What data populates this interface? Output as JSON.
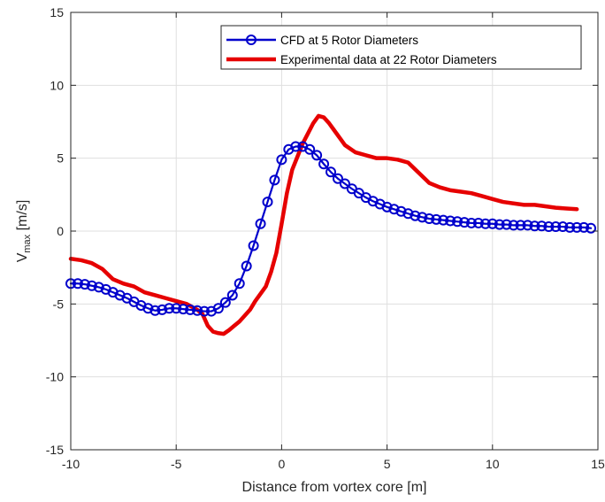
{
  "chart_data": {
    "type": "line",
    "title": "",
    "xlabel": "Distance from vortex core [m]",
    "ylabel": {
      "main": "V",
      "sub": "max",
      "unit": " [m/s]"
    },
    "xlim": [
      -10,
      15
    ],
    "ylim": [
      -15,
      15
    ],
    "xticks": [
      -10,
      -5,
      0,
      5,
      10,
      15
    ],
    "yticks": [
      -15,
      -10,
      -5,
      0,
      5,
      10,
      15
    ],
    "grid": true,
    "legend_position": "top-right",
    "series": [
      {
        "name": "CFD at 5 Rotor Diameters",
        "color": "#0000cc",
        "marker": "circle",
        "x": [
          -10,
          -9.6667,
          -9.3333,
          -9,
          -8.6667,
          -8.3333,
          -8,
          -7.6667,
          -7.3333,
          -7,
          -6.6667,
          -6.3333,
          -6,
          -5.6667,
          -5.3333,
          -5,
          -4.6667,
          -4.3333,
          -4,
          -3.6667,
          -3.3333,
          -3,
          -2.6667,
          -2.3333,
          -2,
          -1.6667,
          -1.3333,
          -1,
          -0.6667,
          -0.3333,
          0,
          0.3333,
          0.6667,
          1,
          1.3333,
          1.6667,
          2,
          2.3333,
          2.6667,
          3,
          3.3333,
          3.6667,
          4,
          4.3333,
          4.6667,
          5,
          5.3333,
          5.6667,
          6,
          6.3333,
          6.6667,
          7,
          7.3333,
          7.6667,
          8,
          8.3333,
          8.6667,
          9,
          9.3333,
          9.6667,
          10,
          10.3333,
          10.6667,
          11,
          11.3333,
          11.6667,
          12,
          12.3333,
          12.6667,
          13,
          13.3333,
          13.6667,
          14,
          14.3333,
          14.6667
        ],
        "y": [
          -3.6,
          -3.6,
          -3.65,
          -3.75,
          -3.85,
          -4.0,
          -4.2,
          -4.4,
          -4.6,
          -4.85,
          -5.1,
          -5.3,
          -5.45,
          -5.4,
          -5.3,
          -5.3,
          -5.35,
          -5.4,
          -5.45,
          -5.5,
          -5.5,
          -5.3,
          -4.9,
          -4.4,
          -3.6,
          -2.4,
          -1.0,
          0.5,
          2.0,
          3.5,
          4.9,
          5.6,
          5.8,
          5.8,
          5.6,
          5.2,
          4.6,
          4.05,
          3.6,
          3.25,
          2.9,
          2.6,
          2.3,
          2.05,
          1.85,
          1.65,
          1.5,
          1.35,
          1.2,
          1.05,
          0.95,
          0.85,
          0.8,
          0.75,
          0.7,
          0.65,
          0.6,
          0.55,
          0.55,
          0.5,
          0.5,
          0.45,
          0.45,
          0.4,
          0.4,
          0.4,
          0.35,
          0.35,
          0.3,
          0.3,
          0.3,
          0.25,
          0.25,
          0.25,
          0.2
        ]
      },
      {
        "name": "Experimental data at 22 Rotor Diameters",
        "color": "#e60000",
        "marker": "none",
        "x": [
          -10,
          -9.5,
          -9,
          -8.5,
          -8,
          -7.5,
          -7,
          -6.5,
          -6,
          -5.5,
          -5,
          -4.5,
          -4,
          -3.75,
          -3.5,
          -3.25,
          -3,
          -2.75,
          -2.5,
          -2.25,
          -2,
          -1.75,
          -1.5,
          -1.25,
          -1,
          -0.75,
          -0.5,
          -0.25,
          0,
          0.25,
          0.5,
          0.75,
          1,
          1.25,
          1.5,
          1.75,
          2,
          2.25,
          2.5,
          2.75,
          3,
          3.5,
          4,
          4.5,
          5,
          5.5,
          6,
          6.5,
          7,
          7.5,
          8,
          8.5,
          9,
          9.5,
          10,
          10.5,
          11,
          11.5,
          12,
          12.5,
          13,
          13.5,
          14
        ],
        "y": [
          -1.9,
          -2.0,
          -2.2,
          -2.6,
          -3.3,
          -3.6,
          -3.8,
          -4.2,
          -4.4,
          -4.6,
          -4.8,
          -5.0,
          -5.4,
          -5.7,
          -6.5,
          -6.9,
          -7.0,
          -7.05,
          -6.8,
          -6.5,
          -6.2,
          -5.8,
          -5.4,
          -4.8,
          -4.3,
          -3.8,
          -2.8,
          -1.5,
          0.5,
          2.6,
          4.2,
          5.1,
          6.0,
          6.7,
          7.4,
          7.9,
          7.8,
          7.4,
          6.9,
          6.4,
          5.9,
          5.4,
          5.2,
          5.0,
          5.0,
          4.9,
          4.7,
          4.0,
          3.3,
          3.0,
          2.8,
          2.7,
          2.6,
          2.4,
          2.2,
          2.0,
          1.9,
          1.8,
          1.8,
          1.7,
          1.6,
          1.55,
          1.5
        ]
      }
    ]
  }
}
